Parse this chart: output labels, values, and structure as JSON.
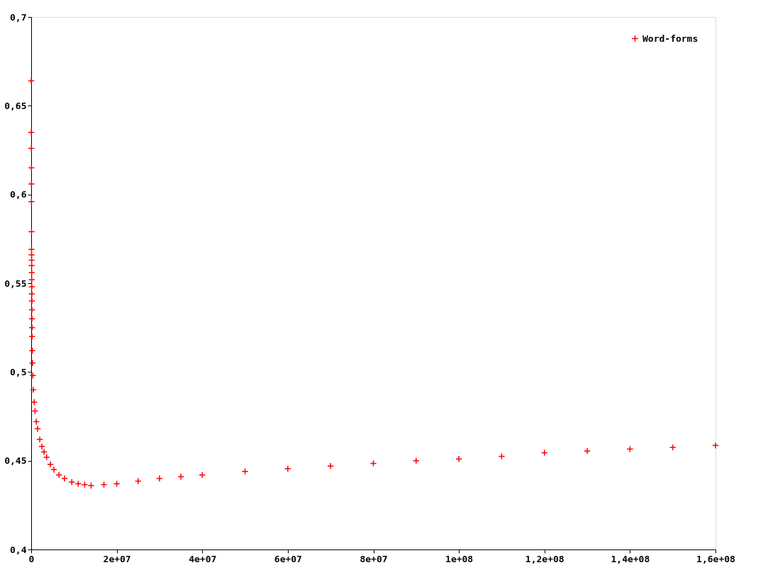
{
  "chart_data": {
    "type": "scatter",
    "marker": "cross",
    "legend": "top right",
    "grid": false,
    "xlim": [
      0,
      160000000
    ],
    "ylim": [
      0.4,
      0.7
    ],
    "xticks": [
      {
        "value": 0,
        "label": "0"
      },
      {
        "value": 20000000,
        "label": "2e+07"
      },
      {
        "value": 40000000,
        "label": "4e+07"
      },
      {
        "value": 60000000,
        "label": "6e+07"
      },
      {
        "value": 80000000,
        "label": "8e+07"
      },
      {
        "value": 100000000,
        "label": "1e+08"
      },
      {
        "value": 120000000,
        "label": "1,2e+08"
      },
      {
        "value": 140000000,
        "label": "1,4e+08"
      },
      {
        "value": 160000000,
        "label": "1,6e+08"
      }
    ],
    "yticks": [
      {
        "value": 0.4,
        "label": "0,4"
      },
      {
        "value": 0.45,
        "label": "0,45"
      },
      {
        "value": 0.5,
        "label": "0,5"
      },
      {
        "value": 0.55,
        "label": "0,55"
      },
      {
        "value": 0.6,
        "label": "0,6"
      },
      {
        "value": 0.65,
        "label": "0,65"
      },
      {
        "value": 0.7,
        "label": "0,7"
      }
    ],
    "series": [
      {
        "name": "Word-forms",
        "color": "#ff0000",
        "x": [
          10000,
          20000,
          30000,
          40000,
          50000,
          60000,
          70000,
          80000,
          90000,
          100000,
          110000,
          120000,
          130000,
          140000,
          150000,
          160000,
          170000,
          180000,
          190000,
          200000,
          250000,
          300000,
          400000,
          500000,
          700000,
          900000,
          1200000,
          1500000,
          2000000,
          2500000,
          3000000,
          3600000,
          4500000,
          5300000,
          6500000,
          7800000,
          9500000,
          11000000,
          12500000,
          14000000,
          17000000,
          20000000,
          25000000,
          30000000,
          35000000,
          40000000,
          50000000,
          60000000,
          70000000,
          80000000,
          90000000,
          100000000,
          110000000,
          120000000,
          130000000,
          140000000,
          150000000,
          160000000
        ],
        "values": [
          0.664,
          0.635,
          0.626,
          0.615,
          0.606,
          0.596,
          0.579,
          0.569,
          0.566,
          0.563,
          0.56,
          0.556,
          0.552,
          0.548,
          0.544,
          0.54,
          0.535,
          0.53,
          0.525,
          0.52,
          0.512,
          0.505,
          0.498,
          0.49,
          0.483,
          0.478,
          0.472,
          0.468,
          0.462,
          0.458,
          0.455,
          0.452,
          0.448,
          0.445,
          0.442,
          0.44,
          0.438,
          0.437,
          0.4365,
          0.436,
          0.4365,
          0.437,
          0.4385,
          0.44,
          0.441,
          0.442,
          0.444,
          0.4455,
          0.447,
          0.4485,
          0.45,
          0.451,
          0.4525,
          0.4545,
          0.4555,
          0.4565,
          0.4575,
          0.4586
        ]
      }
    ]
  }
}
